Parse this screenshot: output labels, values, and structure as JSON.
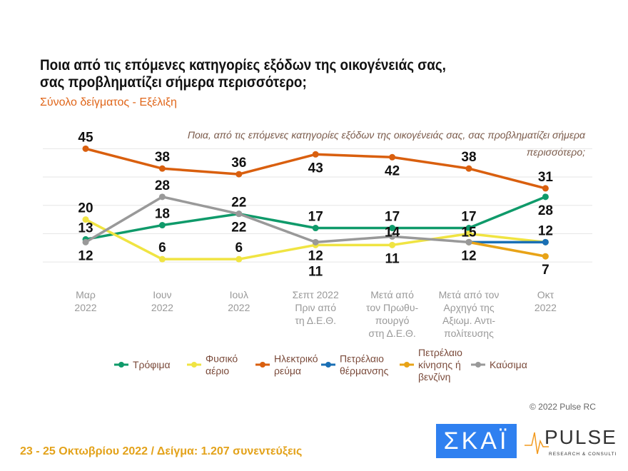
{
  "title_line1": "Ποια από τις επόμενες κατηγορίες εξόδων της οικογένειάς σας,",
  "title_line2": "σας προβληματίζει σήμερα περισσότερο;",
  "subtitle": "Σύνολο δείγματος - Εξέλιξη",
  "footer": "23 - 25  Οκτωβρίου  2022  /  Δείγμα:  1.207 συνεντεύξεις",
  "copyright": "© 2022 Pulse RC",
  "logos": {
    "skai": "ΣΚΑΪ",
    "pulse": "PULSE",
    "pulse_sub": "RESEARCH & CONSULTING"
  },
  "chart_data": {
    "type": "line",
    "title": "Ποια, από τις επόμενες κατηγορίες εξόδων της οικογένειάς σας, σας προβληματίζει σήμερα περισσότερο;",
    "categories": [
      [
        "Μαρ",
        "2022"
      ],
      [
        "Ιουν",
        "2022"
      ],
      [
        "Ιουλ",
        "2022"
      ],
      [
        "Σεπτ 2022",
        "Πριν από",
        "τη Δ.Ε.Θ."
      ],
      [
        "Μετά από",
        "τον Πρωθυ-",
        "πουργό",
        "στη Δ.Ε.Θ."
      ],
      [
        "Μετά από τον",
        "Αρχηγό της",
        "Αξιωμ. Αντι-",
        "πολίτευσης"
      ],
      [
        "Οκτ",
        "2022"
      ]
    ],
    "grid": true,
    "legend_placement": "bottom",
    "series": [
      {
        "name": "Τρόφιμα",
        "legend": [
          "Τρόφιμα"
        ],
        "color": "#0f9a6a",
        "values": [
          13,
          18,
          22,
          17,
          17,
          17,
          28
        ],
        "label_pos": [
          "above",
          "above",
          "below",
          "above",
          "above",
          "above",
          "below"
        ]
      },
      {
        "name": "Φυσικό αέριο",
        "legend": [
          "Φυσικό",
          "αέριο"
        ],
        "color": "#f0e442",
        "values": [
          20,
          6,
          6,
          11,
          11,
          15,
          12
        ],
        "label_pos": [
          "above",
          "above",
          "above",
          "below",
          "below",
          "above",
          null
        ]
      },
      {
        "name": "Ηλεκτρικό ρεύμα",
        "legend": [
          "Ηλεκτρικό",
          "ρεύμα"
        ],
        "color": "#d95f0e",
        "values": [
          45,
          38,
          36,
          43,
          42,
          38,
          31
        ],
        "label_pos": [
          "above",
          "above",
          "above",
          "below",
          "below",
          "above",
          "above"
        ]
      },
      {
        "name": "Πετρέλαιο θέρμανσης",
        "legend": [
          "Πετρέλαιο",
          "θέρμανσης"
        ],
        "color": "#1a6fb5",
        "values": [
          null,
          null,
          null,
          null,
          null,
          12,
          12
        ],
        "label_pos": [
          null,
          null,
          null,
          null,
          null,
          null,
          "above"
        ]
      },
      {
        "name": "Πετρέλαιο κίνησης ή βενζίνη",
        "legend": [
          "Πετρέλαιο",
          "κίνησης ή",
          "βενζίνη"
        ],
        "color": "#e8a317",
        "values": [
          null,
          null,
          null,
          null,
          null,
          12,
          7
        ],
        "label_pos": [
          null,
          null,
          null,
          null,
          null,
          null,
          "below"
        ]
      },
      {
        "name": "Καύσιμα",
        "legend": [
          "Καύσιμα"
        ],
        "color": "#999999",
        "values": [
          12,
          28,
          22,
          12,
          14,
          12,
          null
        ],
        "label_pos": [
          "below",
          "above",
          "above",
          "below",
          "above",
          "below",
          null
        ]
      }
    ]
  }
}
